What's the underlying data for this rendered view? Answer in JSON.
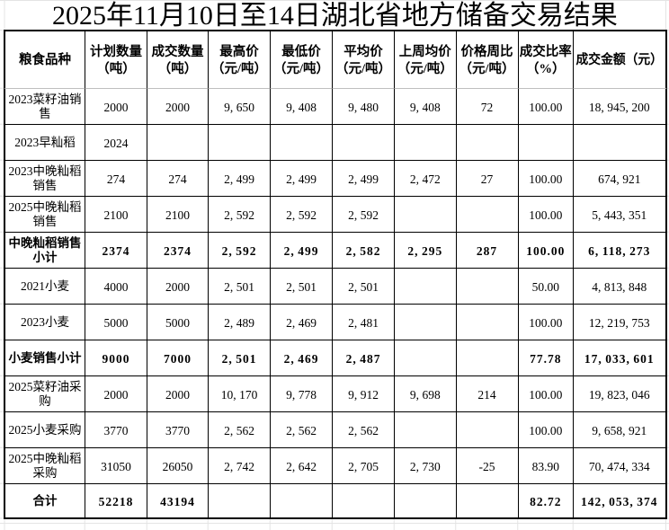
{
  "title": "2025年11月10日至14日湖北省地方储备交易结果",
  "table": {
    "columns": [
      "粮食品种",
      "计划数量（吨）",
      "成交数量（吨）",
      "最高价（元/吨）",
      "最低价（元/吨）",
      "平均价（元/吨）",
      "上周均价（元/吨）",
      "价格周比（元/吨）",
      "成交比率（%）",
      "成交金额（元）"
    ],
    "rows": [
      {
        "label": "2023菜籽油销售",
        "cells": [
          "2000",
          "2000",
          "9,650",
          "9,408",
          "9,480",
          "9,408",
          "72",
          "100.00",
          "18,945,200"
        ]
      },
      {
        "label": "2023早籼稻",
        "cells": [
          "2024",
          "",
          "",
          "",
          "",
          "",
          "",
          "",
          ""
        ]
      },
      {
        "label": "2023中晚籼稻销售",
        "cells": [
          "274",
          "274",
          "2,499",
          "2,499",
          "2,499",
          "2,472",
          "27",
          "100.00",
          "674,921"
        ]
      },
      {
        "label": "2025中晚籼稻销售",
        "cells": [
          "2100",
          "2100",
          "2,592",
          "2,592",
          "2,592",
          "",
          "",
          "100.00",
          "5,443,351"
        ]
      },
      {
        "label": "中晚籼稻销售小计",
        "cells": [
          "2374",
          "2374",
          "2,592",
          "2,499",
          "2,582",
          "2,295",
          "287",
          "100.00",
          "6,118,273"
        ]
      },
      {
        "label": "2021小麦",
        "cells": [
          "4000",
          "2000",
          "2,501",
          "2,501",
          "2,501",
          "",
          "",
          "50.00",
          "4,813,848"
        ]
      },
      {
        "label": "2023小麦",
        "cells": [
          "5000",
          "5000",
          "2,489",
          "2,469",
          "2,481",
          "",
          "",
          "100.00",
          "12,219,753"
        ]
      },
      {
        "label": "小麦销售小计",
        "cells": [
          "9000",
          "7000",
          "2,501",
          "2,469",
          "2,487",
          "",
          "",
          "77.78",
          "17,033,601"
        ]
      },
      {
        "label": "2025菜籽油采购",
        "cells": [
          "2000",
          "2000",
          "10,170",
          "9,778",
          "9,912",
          "9,698",
          "214",
          "100.00",
          "19,823,046"
        ]
      },
      {
        "label": "2025小麦采购",
        "cells": [
          "3770",
          "3770",
          "2,562",
          "2,562",
          "2,562",
          "",
          "",
          "100.00",
          "9,658,921"
        ]
      },
      {
        "label": "2025中晚籼稻采购",
        "cells": [
          "31050",
          "26050",
          "2,742",
          "2,642",
          "2,705",
          "2,730",
          "-25",
          "83.90",
          "70,474,334"
        ]
      },
      {
        "label": "合计",
        "cells": [
          "52218",
          "43194",
          "",
          "",
          "",
          "",
          "",
          "82.72",
          "142,053,374"
        ]
      }
    ],
    "subtotal_row_labels": [
      "中晚籼稻销售小计",
      "小麦销售小计",
      "合计"
    ]
  },
  "colors": {
    "text": "#000000",
    "table_border": "#000000",
    "header_separator": "#bfbfbf",
    "sheet_gridline": "#e4e4e4",
    "background": "#ffffff"
  }
}
